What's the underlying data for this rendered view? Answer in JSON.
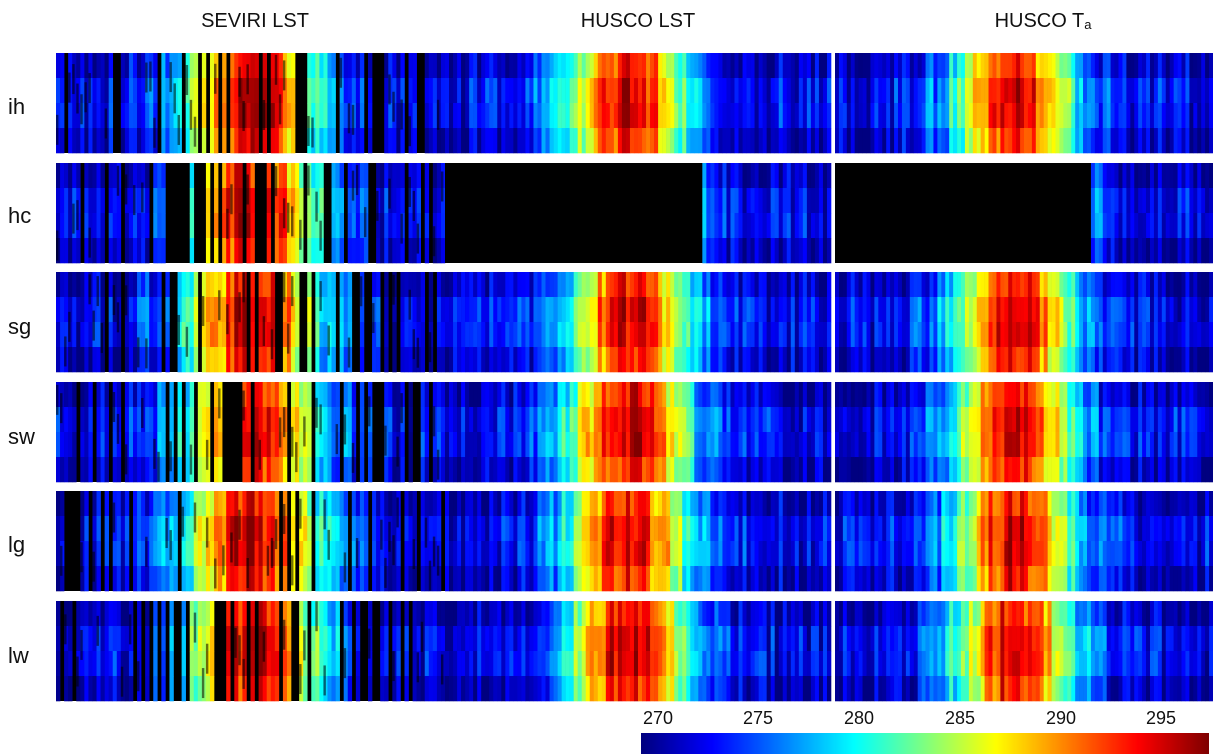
{
  "chart_data": {
    "type": "heatmap",
    "columns": [
      {
        "title": "SEVIRI LST"
      },
      {
        "title": "HUSCO LST"
      },
      {
        "title": "HUSCO T",
        "title_subscript": "a"
      }
    ],
    "rows": [
      "ih",
      "hc",
      "sg",
      "sw",
      "lg",
      "lw"
    ],
    "colorbar": {
      "ticks": [
        "270",
        "275",
        "280",
        "285",
        "290",
        "295"
      ],
      "range": [
        266,
        298
      ],
      "colormap": "jet"
    },
    "missing_color": "#000000",
    "missing_blocks": [
      {
        "column": 1,
        "row": 1,
        "x_frac_end": 0.66
      },
      {
        "column": 2,
        "row": 1,
        "x_frac_end": 0.67
      }
    ]
  }
}
